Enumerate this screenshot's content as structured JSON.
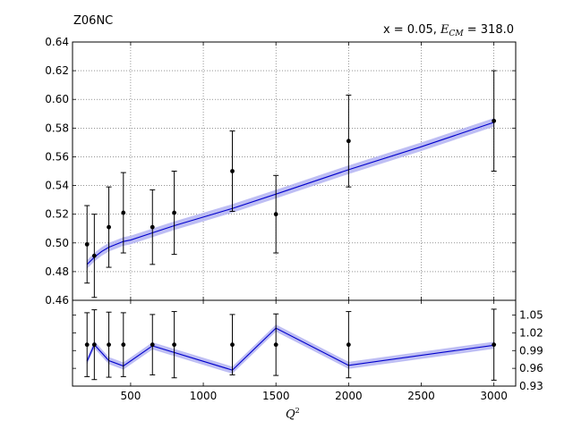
{
  "header": {
    "dataset": "Z06NC",
    "kinematics_prefix": "x = 0.05, ",
    "ecm_symbol": "E",
    "ecm_subscript": "CM",
    "kinematics_suffix": " = 318.0"
  },
  "axes": {
    "xlabel_base": "Q",
    "xlabel_exp": "2"
  },
  "chart_data": [
    {
      "type": "scatter",
      "panel": "main",
      "title": "Z06NC",
      "xlabel": "Q²",
      "xlim": [
        100,
        3150
      ],
      "ylim": [
        0.46,
        0.64
      ],
      "grid": true,
      "y_ticks": [
        "0.46",
        "0.48",
        "0.50",
        "0.52",
        "0.54",
        "0.56",
        "0.58",
        "0.60",
        "0.62",
        "0.64"
      ],
      "x_ticks": [
        "500",
        "1000",
        "1500",
        "2000",
        "2500",
        "3000"
      ],
      "x_tick_values": [
        500,
        1000,
        1500,
        2000,
        2500,
        3000
      ],
      "y_tick_values": [
        0.46,
        0.48,
        0.5,
        0.52,
        0.54,
        0.56,
        0.58,
        0.6,
        0.62,
        0.64
      ],
      "series": [
        {
          "kind": "points_with_errors",
          "color": "#000000",
          "x": [
            200,
            250,
            350,
            450,
            650,
            800,
            1200,
            1500,
            2000,
            3000
          ],
          "y": [
            0.499,
            0.491,
            0.511,
            0.521,
            0.511,
            0.521,
            0.55,
            0.52,
            0.571,
            0.585
          ],
          "err": [
            0.027,
            0.029,
            0.028,
            0.028,
            0.026,
            0.029,
            0.028,
            0.027,
            0.032,
            0.035
          ]
        },
        {
          "kind": "band_line",
          "color": "#0000cc",
          "band_color": "#b3b3f2",
          "x": [
            200,
            250,
            300,
            350,
            400,
            450,
            500,
            650,
            800,
            1000,
            1200,
            1500,
            2000,
            2500,
            3000
          ],
          "y": [
            0.485,
            0.49,
            0.494,
            0.497,
            0.499,
            0.501,
            0.502,
            0.507,
            0.512,
            0.518,
            0.524,
            0.534,
            0.551,
            0.567,
            0.584
          ],
          "band_halfwidth": 0.003
        }
      ]
    },
    {
      "type": "scatter",
      "panel": "ratio",
      "xlim": [
        100,
        3150
      ],
      "ylim": [
        0.93,
        1.075
      ],
      "grid": false,
      "y_ticks": [
        "0.93",
        "0.96",
        "0.99",
        "1.02",
        "1.05"
      ],
      "y_tick_values": [
        0.93,
        0.96,
        0.99,
        1.02,
        1.05
      ],
      "y_axis_side": "right",
      "series": [
        {
          "kind": "points_with_errors",
          "color": "#000000",
          "x": [
            200,
            250,
            350,
            450,
            650,
            800,
            1200,
            1500,
            2000,
            3000
          ],
          "y": [
            1.0,
            1.0,
            1.0,
            1.0,
            1.0,
            1.0,
            1.0,
            1.0,
            1.0,
            1.0
          ],
          "err": [
            0.054,
            0.059,
            0.055,
            0.054,
            0.051,
            0.056,
            0.051,
            0.052,
            0.056,
            0.06
          ]
        },
        {
          "kind": "band_line",
          "color": "#0000cc",
          "band_color": "#b3b3f2",
          "x": [
            200,
            250,
            350,
            450,
            650,
            1200,
            1500,
            2000,
            3000
          ],
          "y": [
            0.972,
            1.0,
            0.973,
            0.964,
            0.998,
            0.957,
            1.028,
            0.965,
            0.999
          ],
          "band_halfwidth": 0.006
        }
      ]
    }
  ]
}
